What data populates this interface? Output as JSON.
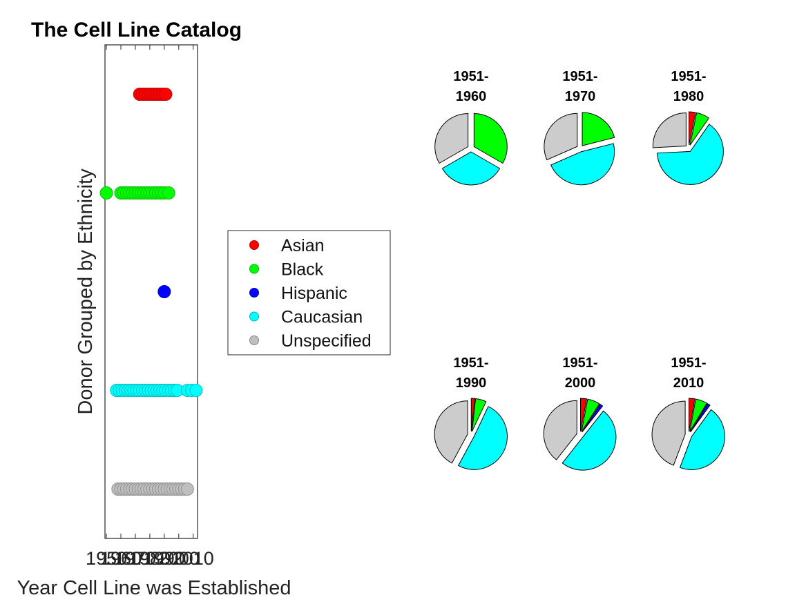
{
  "figure": {
    "title": "The Cell Line Catalog"
  },
  "chart_data": [
    {
      "type": "scatter",
      "title": "The Cell Line Catalog",
      "xlabel": "Year Cell Line was Established",
      "ylabel": "Donor Grouped by Ethnicity",
      "xlim": [
        1949,
        2013
      ],
      "xticks": [
        1950,
        1960,
        1970,
        1980,
        1990,
        2000,
        2010
      ],
      "xtick_labels": [
        "1950",
        "1960",
        "1970",
        "1980",
        "1990",
        "2000",
        "2010"
      ],
      "categories": [
        "Asian",
        "Black",
        "Hispanic",
        "Caucasian",
        "Unspecified"
      ],
      "legend_position": "right",
      "series": [
        {
          "name": "Asian",
          "color": "#ff0000",
          "years": [
            1973,
            1975,
            1977,
            1979,
            1981,
            1983,
            1985,
            1987,
            1989,
            1991
          ]
        },
        {
          "name": "Black",
          "color": "#00ff00",
          "years": [
            1950,
            1960,
            1962,
            1964,
            1966,
            1968,
            1970,
            1972,
            1974,
            1976,
            1978,
            1980,
            1982,
            1984,
            1986,
            1988,
            1990,
            1993
          ]
        },
        {
          "name": "Hispanic",
          "color": "#0000ff",
          "years": [
            1990
          ]
        },
        {
          "name": "Caucasian",
          "color": "#00ffff",
          "years": [
            1957,
            1959,
            1961,
            1963,
            1965,
            1967,
            1969,
            1971,
            1973,
            1975,
            1977,
            1979,
            1981,
            1983,
            1985,
            1987,
            1989,
            1991,
            1993,
            1995,
            1997,
            1999,
            2006,
            2009,
            2012
          ]
        },
        {
          "name": "Unspecified",
          "color": "#bfbfbf",
          "years": [
            1958,
            1960,
            1962,
            1964,
            1966,
            1968,
            1970,
            1972,
            1974,
            1976,
            1978,
            1980,
            1982,
            1984,
            1986,
            1988,
            1990,
            1992,
            1994,
            1996,
            1998,
            2000,
            2002,
            2004,
            2006
          ]
        }
      ]
    },
    {
      "type": "pie",
      "title": [
        "1951-",
        "1960"
      ],
      "labels": [
        "Asian",
        "Black",
        "Hispanic",
        "Caucasian",
        "Unspecified"
      ],
      "colors": [
        "#ff0000",
        "#00ff00",
        "#0000ff",
        "#00ffff",
        "#cccccc"
      ],
      "values": [
        0,
        1,
        0,
        1,
        1
      ],
      "explode": [
        1,
        1,
        1,
        1,
        1
      ]
    },
    {
      "type": "pie",
      "title": [
        "1951-",
        "1970"
      ],
      "labels": [
        "Asian",
        "Black",
        "Hispanic",
        "Caucasian",
        "Unspecified"
      ],
      "colors": [
        "#ff0000",
        "#00ff00",
        "#0000ff",
        "#00ffff",
        "#cccccc"
      ],
      "values": [
        0,
        2,
        0,
        4.5,
        3
      ],
      "explode": [
        1,
        1,
        1,
        1,
        1
      ]
    },
    {
      "type": "pie",
      "title": [
        "1951-",
        "1980"
      ],
      "labels": [
        "Asian",
        "Black",
        "Hispanic",
        "Caucasian",
        "Unspecified"
      ],
      "colors": [
        "#ff0000",
        "#00ff00",
        "#0000ff",
        "#00ffff",
        "#cccccc"
      ],
      "values": [
        1,
        2,
        0,
        20,
        8
      ],
      "explode": [
        1,
        1,
        1,
        1,
        1
      ]
    },
    {
      "type": "pie",
      "title": [
        "1951-",
        "1990"
      ],
      "labels": [
        "Asian",
        "Black",
        "Hispanic",
        "Caucasian",
        "Unspecified"
      ],
      "colors": [
        "#ff0000",
        "#00ff00",
        "#0000ff",
        "#00ffff",
        "#cccccc"
      ],
      "values": [
        1,
        3,
        0,
        29,
        24
      ],
      "explode": [
        1,
        1,
        1,
        1,
        1
      ]
    },
    {
      "type": "pie",
      "title": [
        "1951-",
        "2000"
      ],
      "labels": [
        "Asian",
        "Black",
        "Hispanic",
        "Caucasian",
        "Unspecified"
      ],
      "colors": [
        "#ff0000",
        "#00ff00",
        "#0000ff",
        "#00ffff",
        "#cccccc"
      ],
      "values": [
        2,
        4,
        1,
        33,
        26
      ],
      "explode": [
        1,
        1,
        1,
        1,
        1
      ]
    },
    {
      "type": "pie",
      "title": [
        "1951-",
        "2010"
      ],
      "labels": [
        "Asian",
        "Black",
        "Hispanic",
        "Caucasian",
        "Unspecified"
      ],
      "colors": [
        "#ff0000",
        "#00ff00",
        "#0000ff",
        "#00ffff",
        "#cccccc"
      ],
      "values": [
        2,
        4,
        1,
        32,
        31
      ],
      "explode": [
        1,
        1,
        1,
        1,
        1
      ]
    }
  ]
}
